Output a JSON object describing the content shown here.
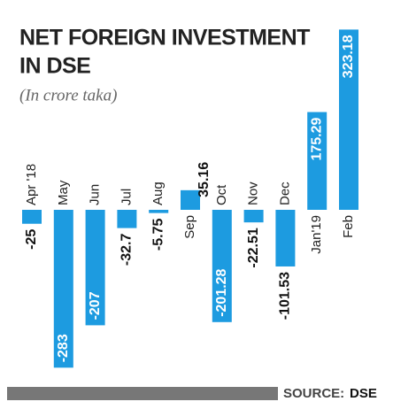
{
  "chart_data": {
    "type": "bar",
    "title": "NET FOREIGN INVESTMENT",
    "title_line2": "IN DSE",
    "subtitle": "(In crore taka)",
    "categories": [
      "Apr '18",
      "May",
      "Jun",
      "Jul",
      "Aug",
      "Sep",
      "Oct",
      "Nov",
      "Dec",
      "Jan'19",
      "Feb"
    ],
    "values": [
      -25,
      -283,
      -207,
      -32.7,
      -5.75,
      35.16,
      -201.28,
      -22.51,
      -101.53,
      175.29,
      323.18
    ],
    "color": "#1d9be0",
    "source_label": "SOURCE:",
    "source": "DSE"
  }
}
